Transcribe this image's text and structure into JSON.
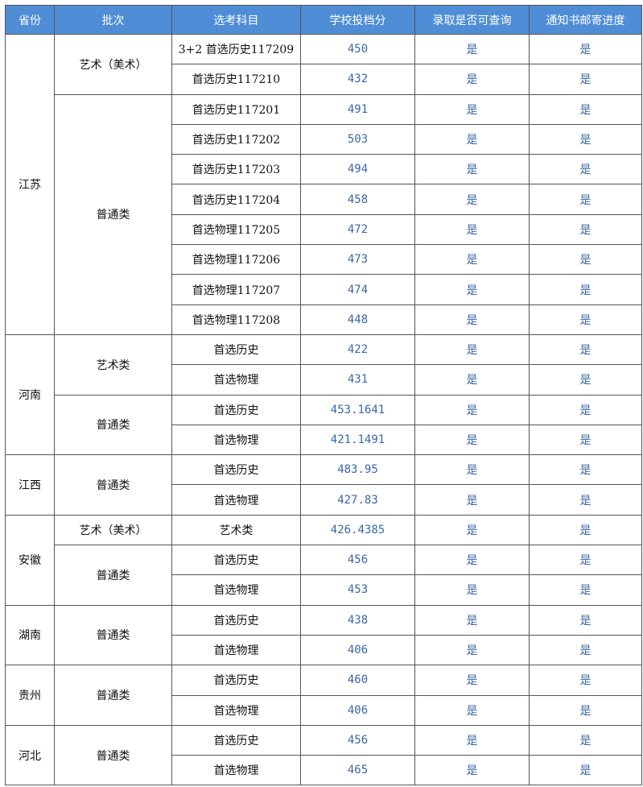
{
  "header": [
    "省份",
    "批次",
    "选考科目",
    "学校投档分",
    "录取是否可查询",
    "通知书邮寄进度"
  ],
  "colors": {
    "header_bg": "#4f8dd6",
    "value_text": "#3a66a6"
  },
  "provinces": [
    {
      "name": "江苏",
      "batches": [
        {
          "name": "艺术（美术）",
          "rows": [
            {
              "subject": "3+2  首选历史117209",
              "score": "450",
              "query": "是",
              "mail": "是"
            },
            {
              "subject": "首选历史117210",
              "score": "432",
              "query": "是",
              "mail": "是"
            }
          ]
        },
        {
          "name": "普通类",
          "rows": [
            {
              "subject": "首选历史117201",
              "score": "491",
              "query": "是",
              "mail": "是"
            },
            {
              "subject": "首选历史117202",
              "score": "503",
              "query": "是",
              "mail": "是"
            },
            {
              "subject": "首选历史117203",
              "score": "494",
              "query": "是",
              "mail": "是"
            },
            {
              "subject": "首选历史117204",
              "score": "458",
              "query": "是",
              "mail": "是"
            },
            {
              "subject": "首选物理117205",
              "score": "472",
              "query": "是",
              "mail": "是"
            },
            {
              "subject": "首选物理117206",
              "score": "473",
              "query": "是",
              "mail": "是"
            },
            {
              "subject": "首选物理117207",
              "score": "474",
              "query": "是",
              "mail": "是"
            },
            {
              "subject": "首选物理117208",
              "score": "448",
              "query": "是",
              "mail": "是"
            }
          ]
        }
      ]
    },
    {
      "name": "河南",
      "batches": [
        {
          "name": "艺术类",
          "rows": [
            {
              "subject": "首选历史",
              "score": "422",
              "query": "是",
              "mail": "是"
            },
            {
              "subject": "首选物理",
              "score": "431",
              "query": "是",
              "mail": "是"
            }
          ]
        },
        {
          "name": "普通类",
          "rows": [
            {
              "subject": "首选历史",
              "score": "453.1641",
              "query": "是",
              "mail": "是"
            },
            {
              "subject": "首选物理",
              "score": "421.1491",
              "query": "是",
              "mail": "是"
            }
          ]
        }
      ]
    },
    {
      "name": "江西",
      "batches": [
        {
          "name": "普通类",
          "rows": [
            {
              "subject": "首选历史",
              "score": "483.95",
              "query": "是",
              "mail": "是"
            },
            {
              "subject": "首选物理",
              "score": "427.83",
              "query": "是",
              "mail": "是"
            }
          ]
        }
      ]
    },
    {
      "name": "安徽",
      "batches": [
        {
          "name": "艺术（美术）",
          "rows": [
            {
              "subject": "艺术类",
              "score": "426.4385",
              "query": "是",
              "mail": "是"
            }
          ]
        },
        {
          "name": "普通类",
          "rows": [
            {
              "subject": "首选历史",
              "score": "456",
              "query": "是",
              "mail": "是"
            },
            {
              "subject": "首选物理",
              "score": "453",
              "query": "是",
              "mail": "是"
            }
          ]
        }
      ]
    },
    {
      "name": "湖南",
      "batches": [
        {
          "name": "普通类",
          "rows": [
            {
              "subject": "首选历史",
              "score": "438",
              "query": "是",
              "mail": "是"
            },
            {
              "subject": "首选物理",
              "score": "406",
              "query": "是",
              "mail": "是"
            }
          ]
        }
      ]
    },
    {
      "name": "贵州",
      "batches": [
        {
          "name": "普通类",
          "rows": [
            {
              "subject": "首选历史",
              "score": "460",
              "query": "是",
              "mail": "是"
            },
            {
              "subject": "首选物理",
              "score": "406",
              "query": "是",
              "mail": "是"
            }
          ]
        }
      ]
    },
    {
      "name": "河北",
      "batches": [
        {
          "name": "普通类",
          "rows": [
            {
              "subject": "首选历史",
              "score": "456",
              "query": "是",
              "mail": "是"
            },
            {
              "subject": "首选物理",
              "score": "465",
              "query": "是",
              "mail": "是"
            }
          ]
        }
      ]
    }
  ]
}
